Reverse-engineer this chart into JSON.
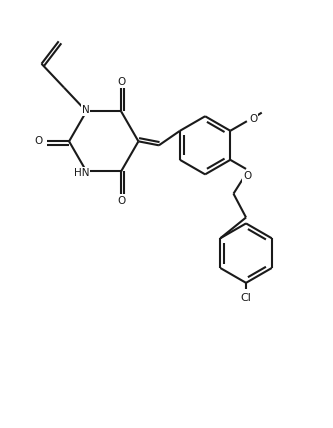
{
  "bg_color": "#ffffff",
  "line_color": "#1a1a1a",
  "line_width": 1.5,
  "font_size": 7.5,
  "figsize": [
    3.33,
    4.28
  ],
  "dpi": 100,
  "xlim": [
    0,
    10
  ],
  "ylim": [
    0,
    12.8
  ]
}
